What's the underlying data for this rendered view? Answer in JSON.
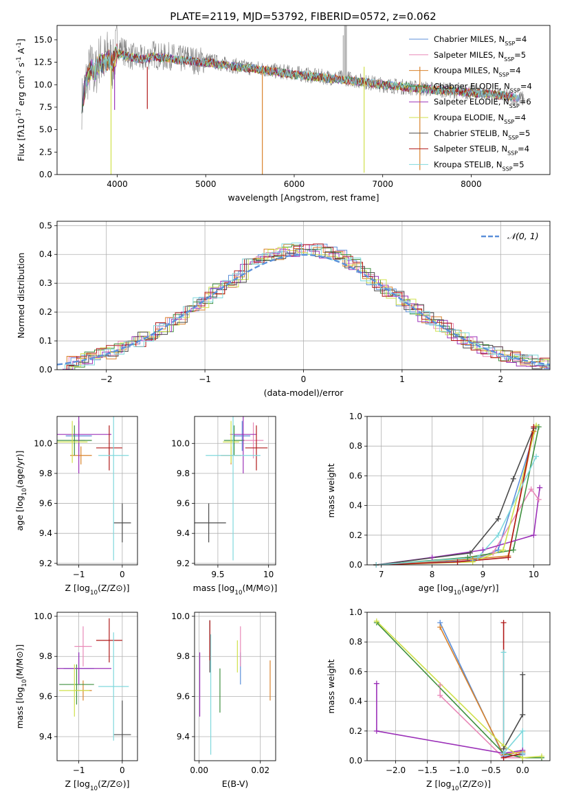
{
  "figure": {
    "title": "PLATE=2119, MJD=53792, FIBERID=0572, z=0.062"
  },
  "colors": {
    "Chabrier MILES": "#5b8fd9",
    "Salpeter MILES": "#e989b8",
    "Kroupa MILES": "#d9822b",
    "Chabrier ELODIE": "#3d8f3d",
    "Salpeter ELODIE": "#9b30b8",
    "Kroupa ELODIE": "#cfe04a",
    "Chabrier STELIB": "#4a4a4a",
    "Salpeter STELIB": "#b01818",
    "Kroupa STELIB": "#7fd8dc",
    "data": "#808080",
    "normal_curve": "#5b8fd9"
  },
  "chart_data": [
    {
      "id": "spectrum",
      "type": "line",
      "xlabel": "wavelength [Angstrom, rest frame]",
      "ylabel": "Flux [f$_\\lambda$10$^{-17}$ erg cm$^{-2}$ s$^{-1}$ A$^{-1}$]",
      "xlim": [
        3320,
        8890
      ],
      "ylim": [
        0,
        16.6
      ],
      "xticks": [
        4000,
        5000,
        6000,
        7000,
        8000
      ],
      "yticks": [
        0.0,
        2.5,
        5.0,
        7.5,
        10.0,
        12.5,
        15.0
      ],
      "ytick_labels": [
        "0.0",
        "2.5",
        "5.0",
        "7.5",
        "10.0",
        "12.5",
        "15.0"
      ],
      "grid": false,
      "legend_position": "top-right",
      "data_x": [
        3600,
        3650,
        3700,
        3750,
        3800,
        3850,
        3900,
        3950,
        4000,
        4100,
        4200,
        4300,
        4400,
        4500,
        4600,
        4700,
        4800,
        4900,
        5000,
        5200,
        5400,
        5600,
        5800,
        6000,
        6200,
        6400,
        6600,
        6800,
        7000,
        7200,
        7400,
        7600,
        7800,
        8000,
        8200,
        8400,
        8600
      ],
      "data_y": [
        8.0,
        10.5,
        12.0,
        11.0,
        13.0,
        12.5,
        13.5,
        12.0,
        14.5,
        13.5,
        13.0,
        12.8,
        13.5,
        13.0,
        13.2,
        12.8,
        13.0,
        12.6,
        12.8,
        12.3,
        12.0,
        11.8,
        11.5,
        11.3,
        11.0,
        10.8,
        10.7,
        10.3,
        10.0,
        9.8,
        9.6,
        9.5,
        9.3,
        9.2,
        9.0,
        8.7,
        8.4
      ],
      "model_y": [
        8.0,
        10.2,
        11.8,
        11.5,
        12.5,
        12.3,
        12.8,
        12.5,
        13.5,
        13.2,
        13.0,
        12.8,
        13.1,
        13.0,
        12.9,
        12.7,
        12.7,
        12.5,
        12.5,
        12.2,
        11.9,
        11.7,
        11.4,
        11.1,
        10.9,
        10.7,
        10.5,
        10.3,
        10.0,
        9.8,
        9.6,
        9.4,
        9.3,
        9.1,
        9.0,
        8.7,
        8.4
      ],
      "series": [
        {
          "name": "Chabrier MILES, N$_{SSP}$=4"
        },
        {
          "name": "Salpeter MILES, N$_{SSP}$=5"
        },
        {
          "name": "Kroupa MILES, N$_{SSP}$=4"
        },
        {
          "name": "Chabrier ELODIE, N$_{SSP}$=4"
        },
        {
          "name": "Salpeter ELODIE, N$_{SSP}$=6"
        },
        {
          "name": "Kroupa ELODIE, N$_{SSP}$=4"
        },
        {
          "name": "Chabrier STELIB, N$_{SSP}$=5"
        },
        {
          "name": "Salpeter STELIB, N$_{SSP}$=4"
        },
        {
          "name": "Kroupa STELIB, N$_{SSP}$=5"
        }
      ]
    },
    {
      "id": "residuals",
      "type": "line",
      "xlabel": "(data-model)/error",
      "ylabel": "Normed distribution",
      "xlim": [
        -2.5,
        2.5
      ],
      "ylim": [
        0,
        0.515
      ],
      "xticks": [
        -2,
        -1,
        0,
        1,
        2
      ],
      "yticks": [
        0.0,
        0.1,
        0.2,
        0.3,
        0.4,
        0.5
      ],
      "ytick_labels": [
        "0.0",
        "0.1",
        "0.2",
        "0.3",
        "0.4",
        "0.5"
      ],
      "grid": true,
      "legend_position": "top-right",
      "legend": [
        "$\\mathcal{N}(0,1)$"
      ],
      "bin_width": 0.1
    },
    {
      "id": "age_vs_Z",
      "type": "scatter",
      "xlabel": "Z [log$_{10}$(Z/Z$_\\odot$)]",
      "ylabel": "age  [log$_{10}$(age/yr)]",
      "xlim": [
        -1.5,
        0.35
      ],
      "ylim": [
        9.19,
        10.18
      ],
      "xticks": [
        -1,
        0
      ],
      "yticks": [
        9.2,
        9.4,
        9.6,
        9.8,
        10.0
      ],
      "ytick_labels": [
        "9.2",
        "9.4",
        "9.6",
        "9.8",
        "10.0"
      ],
      "grid": true,
      "points": [
        {
          "x": -1.0,
          "y": 10.05,
          "xerr": 0.3,
          "yerr": 0.1,
          "c": "Chabrier MILES"
        },
        {
          "x": -1.0,
          "y": 10.02,
          "xerr": 0.15,
          "yerr": 0.12,
          "c": "Salpeter MILES"
        },
        {
          "x": -0.95,
          "y": 9.92,
          "xerr": 0.25,
          "yerr": 0.06,
          "c": "Kroupa MILES"
        },
        {
          "x": -1.1,
          "y": 10.02,
          "xerr": 0.4,
          "yerr": 0.1,
          "c": "Chabrier ELODIE"
        },
        {
          "x": -1.0,
          "y": 10.06,
          "xerr": 0.75,
          "yerr": 0.26,
          "c": "Salpeter ELODIE"
        },
        {
          "x": -1.15,
          "y": 10.01,
          "xerr": 0.35,
          "yerr": 0.14,
          "c": "Kroupa ELODIE"
        },
        {
          "x": 0.0,
          "y": 9.47,
          "xerr": 0.2,
          "yerr": 0.13,
          "c": "Chabrier STELIB"
        },
        {
          "x": -0.3,
          "y": 9.97,
          "xerr": 0.3,
          "yerr": 0.15,
          "c": "Salpeter STELIB"
        },
        {
          "x": -0.2,
          "y": 9.92,
          "xerr": 0.35,
          "yerr": 0.7,
          "c": "Kroupa STELIB"
        }
      ]
    },
    {
      "id": "age_vs_mass",
      "type": "scatter",
      "xlabel": "mass [log$_{10}$(M/M$_\\odot$)]",
      "ylabel": "",
      "xlim": [
        9.27,
        10.07
      ],
      "ylim": [
        9.19,
        10.18
      ],
      "xticks": [
        9.5,
        10.0
      ],
      "yticks": [
        9.2,
        9.4,
        9.6,
        9.8,
        10.0
      ],
      "ytick_labels": [
        "9.2",
        "9.4",
        "9.6",
        "9.8",
        "10.0"
      ],
      "grid": true,
      "points": [
        {
          "x": 9.74,
          "y": 10.05,
          "xerr": 0.08,
          "yerr": 0.1,
          "c": "Chabrier MILES"
        },
        {
          "x": 9.85,
          "y": 10.02,
          "xerr": 0.1,
          "yerr": 0.12,
          "c": "Salpeter MILES"
        },
        {
          "x": 9.63,
          "y": 9.92,
          "xerr": 0.1,
          "yerr": 0.06,
          "c": "Kroupa MILES"
        },
        {
          "x": 9.66,
          "y": 10.02,
          "xerr": 0.1,
          "yerr": 0.1,
          "c": "Chabrier ELODIE"
        },
        {
          "x": 9.75,
          "y": 10.06,
          "xerr": 0.13,
          "yerr": 0.26,
          "c": "Salpeter ELODIE"
        },
        {
          "x": 9.63,
          "y": 10.01,
          "xerr": 0.08,
          "yerr": 0.14,
          "c": "Kroupa ELODIE"
        },
        {
          "x": 9.41,
          "y": 9.47,
          "xerr": 0.17,
          "yerr": 0.13,
          "c": "Chabrier STELIB"
        },
        {
          "x": 9.88,
          "y": 9.97,
          "xerr": 0.11,
          "yerr": 0.15,
          "c": "Salpeter STELIB"
        },
        {
          "x": 9.65,
          "y": 9.92,
          "xerr": 0.27,
          "yerr": 0.7,
          "c": "Kroupa STELIB"
        }
      ]
    },
    {
      "id": "massweight_vs_age",
      "type": "line",
      "xlabel": "age  [log$_{10}$(age/yr)]",
      "ylabel": "mass weight",
      "xlim": [
        6.72,
        10.32
      ],
      "ylim": [
        0,
        1.0
      ],
      "xticks": [
        7,
        8,
        9,
        10
      ],
      "yticks": [
        0.0,
        0.2,
        0.4,
        0.6,
        0.8,
        1.0
      ],
      "ytick_labels": [
        "0.0",
        "0.2",
        "0.4",
        "0.6",
        "0.8",
        "1.0"
      ],
      "grid": true,
      "series": [
        {
          "c": "Chabrier MILES",
          "x": [
            6.9,
            8.8,
            9.3,
            10.05
          ],
          "y": [
            0.0,
            0.03,
            0.1,
            0.93
          ]
        },
        {
          "c": "Salpeter MILES",
          "x": [
            6.9,
            8.5,
            9.2,
            9.95,
            10.1
          ],
          "y": [
            0.0,
            0.02,
            0.08,
            0.51,
            0.44
          ]
        },
        {
          "c": "Kroupa MILES",
          "x": [
            6.9,
            8.8,
            9.5,
            10.0
          ],
          "y": [
            0.0,
            0.04,
            0.06,
            0.9
          ]
        },
        {
          "c": "Chabrier ELODIE",
          "x": [
            6.9,
            8.7,
            9.6,
            10.1
          ],
          "y": [
            0.0,
            0.05,
            0.1,
            0.93
          ]
        },
        {
          "c": "Salpeter ELODIE",
          "x": [
            6.9,
            8.0,
            9.0,
            10.0,
            10.12
          ],
          "y": [
            0.0,
            0.05,
            0.1,
            0.2,
            0.52
          ]
        },
        {
          "c": "Kroupa ELODIE",
          "x": [
            6.9,
            8.8,
            9.4,
            10.05
          ],
          "y": [
            0.0,
            0.02,
            0.1,
            0.94
          ]
        },
        {
          "c": "Chabrier STELIB",
          "x": [
            6.9,
            8.75,
            9.3,
            9.6,
            10.0
          ],
          "y": [
            0.0,
            0.08,
            0.31,
            0.58,
            0.92
          ]
        },
        {
          "c": "Salpeter STELIB",
          "x": [
            6.9,
            8.5,
            9.5,
            10.0
          ],
          "y": [
            0.0,
            0.02,
            0.05,
            0.93
          ]
        },
        {
          "c": "Kroupa STELIB",
          "x": [
            6.9,
            8.9,
            9.3,
            10.05
          ],
          "y": [
            0.0,
            0.05,
            0.2,
            0.73
          ]
        }
      ]
    },
    {
      "id": "mass_vs_Z",
      "type": "scatter",
      "xlabel": "Z [log$_{10}$(Z/Z$_\\odot$)]",
      "ylabel": "mass [log$_{10}$(M/M$_\\odot$)]",
      "xlim": [
        -1.5,
        0.35
      ],
      "ylim": [
        9.28,
        10.02
      ],
      "xticks": [
        -1,
        0
      ],
      "yticks": [
        9.4,
        9.6,
        9.8,
        10.0
      ],
      "ytick_labels": [
        "9.4",
        "9.6",
        "9.8",
        "10.0"
      ],
      "grid": true,
      "points": [
        {
          "x": -1.0,
          "y": 9.74,
          "xerr": 0.35,
          "yerr": 0.08,
          "c": "Chabrier MILES"
        },
        {
          "x": -0.9,
          "y": 9.85,
          "xerr": 0.2,
          "yerr": 0.1,
          "c": "Salpeter MILES"
        },
        {
          "x": -0.9,
          "y": 9.63,
          "xerr": 0.2,
          "yerr": 0.05,
          "c": "Kroupa MILES"
        },
        {
          "x": -1.05,
          "y": 9.66,
          "xerr": 0.4,
          "yerr": 0.1,
          "c": "Chabrier ELODIE"
        },
        {
          "x": -1.0,
          "y": 9.74,
          "xerr": 0.75,
          "yerr": 0.08,
          "c": "Salpeter ELODIE"
        },
        {
          "x": -1.1,
          "y": 9.63,
          "xerr": 0.35,
          "yerr": 0.13,
          "c": "Kroupa ELODIE"
        },
        {
          "x": 0.0,
          "y": 9.41,
          "xerr": 0.2,
          "yerr": 0.17,
          "c": "Chabrier STELIB"
        },
        {
          "x": -0.3,
          "y": 9.88,
          "xerr": 0.3,
          "yerr": 0.11,
          "c": "Salpeter STELIB"
        },
        {
          "x": -0.2,
          "y": 9.65,
          "xerr": 0.35,
          "yerr": 0.27,
          "c": "Kroupa STELIB"
        }
      ]
    },
    {
      "id": "mass_vs_EBV",
      "type": "scatter",
      "xlabel": "E(B-V)",
      "ylabel": "",
      "xlim": [
        -0.0015,
        0.025
      ],
      "ylim": [
        9.28,
        10.02
      ],
      "xticks": [
        0.0,
        0.02
      ],
      "xtick_labels": [
        "0.00",
        "0.02"
      ],
      "yticks": [
        9.4,
        9.6,
        9.8,
        10.0
      ],
      "ytick_labels": [
        "9.4",
        "9.6",
        "9.8",
        "10.0"
      ],
      "grid": true,
      "points": [
        {
          "x": 0.0135,
          "y": 9.74,
          "yerr": 0.08,
          "c": "Chabrier MILES"
        },
        {
          "x": 0.0135,
          "y": 9.85,
          "yerr": 0.1,
          "c": "Salpeter MILES"
        },
        {
          "x": 0.0232,
          "y": 9.68,
          "yerr": 0.1,
          "c": "Kroupa MILES"
        },
        {
          "x": 0.0068,
          "y": 9.63,
          "yerr": 0.11,
          "c": "Chabrier ELODIE"
        },
        {
          "x": 0.0002,
          "y": 9.66,
          "yerr": 0.16,
          "c": "Salpeter ELODIE"
        },
        {
          "x": 0.0125,
          "y": 9.8,
          "yerr": 0.08,
          "c": "Kroupa ELODIE"
        },
        {
          "x": 0.0035,
          "y": 9.85,
          "yerr": 0.13,
          "c": "Chabrier STELIB"
        },
        {
          "x": 0.0035,
          "y": 9.88,
          "yerr": 0.1,
          "c": "Salpeter STELIB"
        },
        {
          "x": 0.0038,
          "y": 9.61,
          "yerr": 0.3,
          "c": "Kroupa STELIB"
        }
      ]
    },
    {
      "id": "massweight_vs_Z",
      "type": "line",
      "xlabel": "Z [log$_{10}$(Z/Z$_\\odot$)]",
      "ylabel": "mass weight",
      "xlim": [
        -2.45,
        0.43
      ],
      "ylim": [
        0,
        1.0
      ],
      "xticks": [
        -2.0,
        -1.5,
        -1.0,
        -0.5,
        0.0
      ],
      "xtick_labels": [
        "−2.0",
        "−1.5",
        "−1.0",
        "−0.5",
        "0.0"
      ],
      "yticks": [
        0.0,
        0.2,
        0.4,
        0.6,
        0.8,
        1.0
      ],
      "ytick_labels": [
        "0.0",
        "0.2",
        "0.4",
        "0.6",
        "0.8",
        "1.0"
      ],
      "grid": true,
      "series": [
        {
          "c": "Chabrier MILES",
          "x": [
            -1.3,
            -0.3,
            0.0
          ],
          "y": [
            0.93,
            0.03,
            0.04
          ]
        },
        {
          "c": "Salpeter MILES",
          "x": [
            -1.3,
            -1.3,
            -0.3,
            0.0
          ],
          "y": [
            0.51,
            0.44,
            0.02,
            0.02
          ]
        },
        {
          "c": "Kroupa MILES",
          "x": [
            -1.3,
            -0.3,
            0.0
          ],
          "y": [
            0.9,
            0.04,
            0.06
          ]
        },
        {
          "c": "Chabrier ELODIE",
          "x": [
            -2.3,
            -0.3,
            0.0,
            0.3
          ],
          "y": [
            0.93,
            0.05,
            0.02,
            0.02
          ]
        },
        {
          "c": "Salpeter ELODIE",
          "x": [
            -2.3,
            -2.3,
            -0.3,
            0.0
          ],
          "y": [
            0.52,
            0.2,
            0.05,
            0.07
          ]
        },
        {
          "c": "Kroupa ELODIE",
          "x": [
            -2.3,
            -0.3,
            0.0,
            0.3
          ],
          "y": [
            0.94,
            0.1,
            0.02,
            0.03
          ]
        },
        {
          "c": "Chabrier STELIB",
          "x": [
            -0.3,
            0.0,
            0.0
          ],
          "y": [
            0.08,
            0.31,
            0.58
          ]
        },
        {
          "c": "Salpeter STELIB",
          "x": [
            -0.3,
            -0.3,
            0.0
          ],
          "y": [
            0.93,
            0.02,
            0.05
          ]
        },
        {
          "c": "Kroupa STELIB",
          "x": [
            -0.3,
            -0.3,
            0.0,
            0.0
          ],
          "y": [
            0.73,
            0.05,
            0.2,
            0.05
          ]
        }
      ]
    }
  ]
}
